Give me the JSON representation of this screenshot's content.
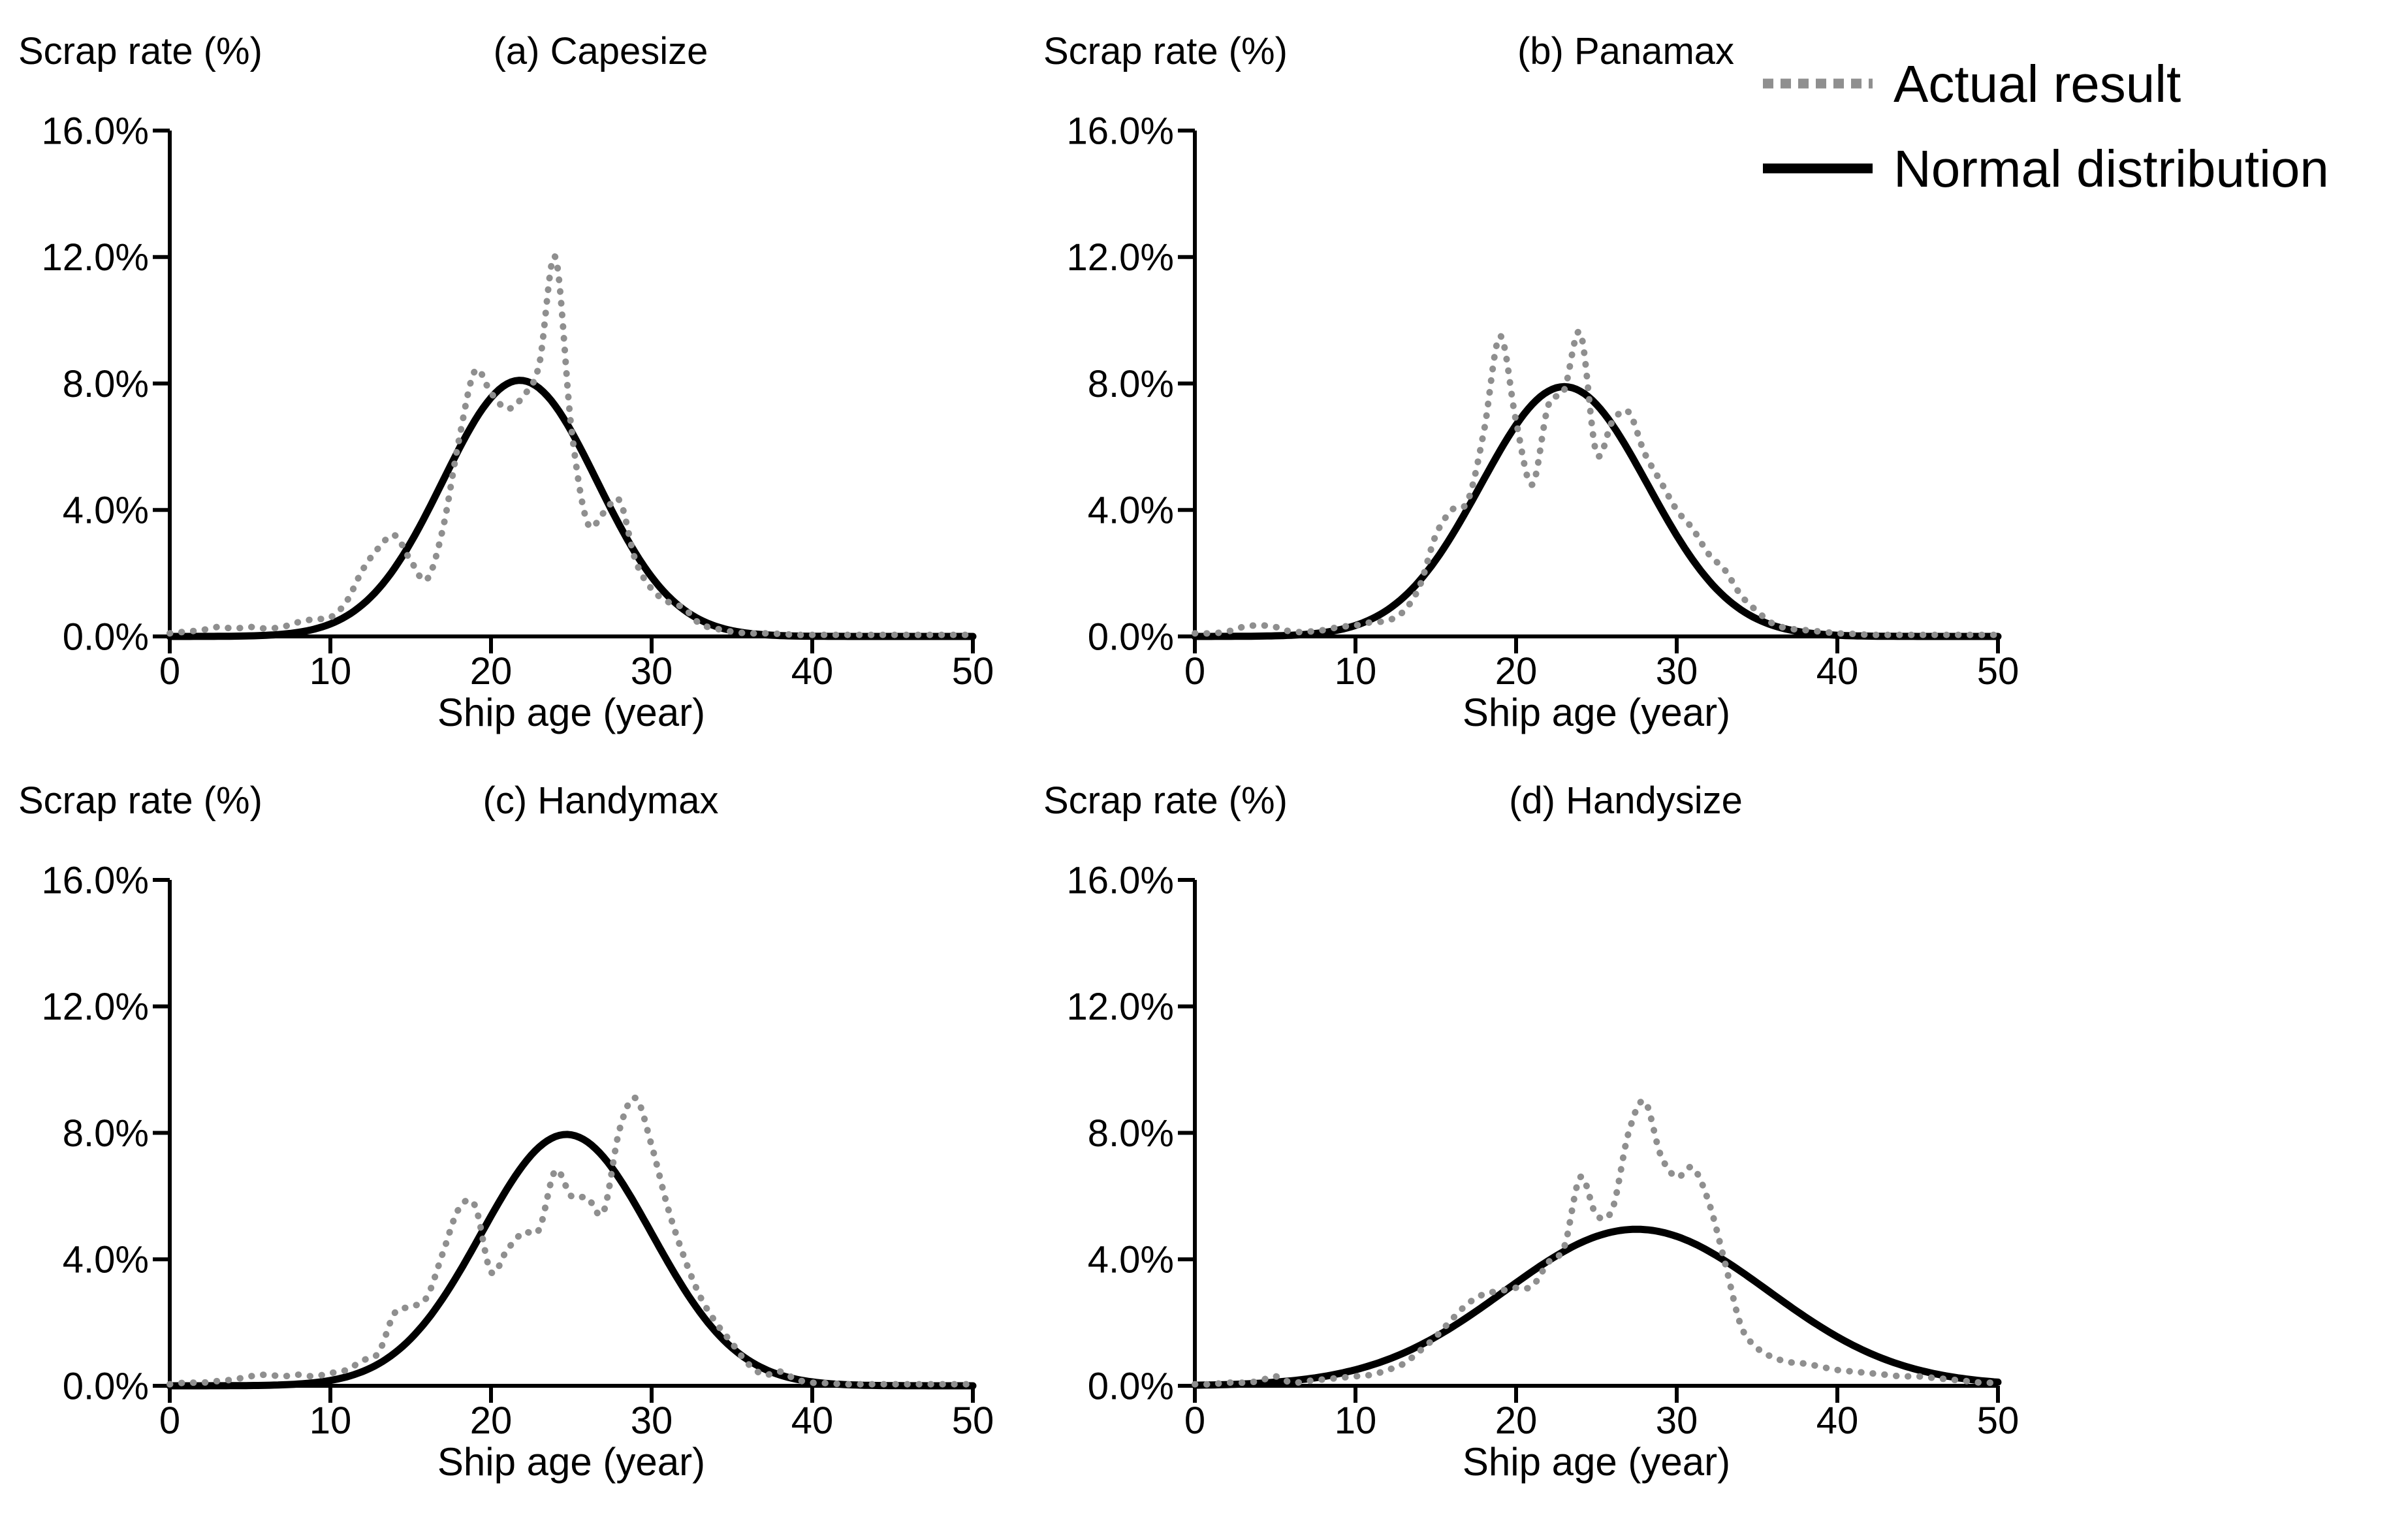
{
  "figure": {
    "background": "#ffffff",
    "text_color": "#000000",
    "actual_color": "#8f8f8f",
    "normal_color": "#000000"
  },
  "legend": {
    "position": "top-right",
    "items": [
      {
        "label": "Actual result",
        "style": "dotted",
        "color": "#8f8f8f"
      },
      {
        "label": "Normal distribution",
        "style": "solid",
        "color": "#000000"
      }
    ]
  },
  "axes": {
    "ylabel": "Scrap rate (%)",
    "xlabel": "Ship age (year)",
    "y_tick_labels": [
      "16.0%",
      "12.0%",
      "8.0%",
      "4.0%",
      "0.0%"
    ],
    "y_tick_values": [
      16,
      12,
      8,
      4,
      0
    ],
    "x_tick_labels": [
      "0",
      "10",
      "20",
      "30",
      "40",
      "50"
    ],
    "x_tick_values": [
      0,
      10,
      20,
      30,
      40,
      50
    ],
    "x_range": [
      0,
      50
    ],
    "y_range_percent": [
      0,
      16
    ],
    "grid": "off"
  },
  "chart_data": [
    {
      "id": "a",
      "type": "line",
      "title": "(a) Capesize",
      "x_years_step": 1,
      "series": [
        {
          "name": "Actual result",
          "values": [
            0.1,
            0.15,
            0.2,
            0.3,
            0.25,
            0.3,
            0.25,
            0.3,
            0.45,
            0.55,
            0.6,
            1.1,
            2.1,
            2.8,
            3.2,
            2.4,
            1.8,
            3.4,
            6.2,
            8.4,
            7.7,
            7.2,
            7.6,
            8.6,
            12.0,
            6.6,
            3.6,
            3.9,
            4.3,
            2.4,
            1.5,
            1.1,
            0.9,
            0.4,
            0.25,
            0.15,
            0.1,
            0.1,
            0.08,
            0.05,
            0.05,
            0.05,
            0.05,
            0.05,
            0.05,
            0.05,
            0.05,
            0.05,
            0.05,
            0.05,
            0.05
          ]
        },
        {
          "name": "Normal distribution",
          "model": {
            "mean": 21.8,
            "sd": 4.8,
            "peak_percent": 8.1
          }
        }
      ]
    },
    {
      "id": "b",
      "type": "line",
      "title": "(b) Panamax",
      "x_years_step": 1,
      "series": [
        {
          "name": "Actual result",
          "values": [
            0.1,
            0.1,
            0.15,
            0.3,
            0.35,
            0.3,
            0.15,
            0.15,
            0.2,
            0.3,
            0.35,
            0.45,
            0.5,
            0.8,
            1.6,
            3.2,
            4.0,
            4.3,
            6.5,
            9.5,
            6.8,
            4.8,
            7.3,
            7.8,
            9.6,
            5.8,
            6.8,
            7.1,
            5.8,
            4.9,
            4.0,
            3.4,
            2.6,
            2.1,
            1.3,
            0.8,
            0.4,
            0.25,
            0.2,
            0.15,
            0.1,
            0.08,
            0.05,
            0.05,
            0.05,
            0.05,
            0.05,
            0.05,
            0.05,
            0.05,
            0.05
          ]
        },
        {
          "name": "Normal distribution",
          "model": {
            "mean": 23.0,
            "sd": 5.2,
            "peak_percent": 7.9
          }
        }
      ]
    },
    {
      "id": "c",
      "type": "line",
      "title": "(c) Handymax",
      "x_years_step": 1,
      "series": [
        {
          "name": "Actual result",
          "values": [
            0.05,
            0.1,
            0.1,
            0.15,
            0.2,
            0.3,
            0.35,
            0.3,
            0.35,
            0.3,
            0.4,
            0.5,
            0.8,
            1.05,
            2.3,
            2.5,
            2.8,
            4.2,
            5.6,
            5.7,
            3.6,
            4.3,
            4.85,
            4.95,
            6.8,
            6.0,
            5.95,
            5.5,
            8.1,
            9.1,
            7.6,
            5.65,
            4.1,
            2.85,
            2.0,
            1.35,
            0.7,
            0.35,
            0.45,
            0.2,
            0.1,
            0.08,
            0.05,
            0.05,
            0.05,
            0.05,
            0.05,
            0.05,
            0.05,
            0.05,
            0.05
          ]
        },
        {
          "name": "Normal distribution",
          "model": {
            "mean": 24.7,
            "sd": 5.3,
            "peak_percent": 7.95
          }
        }
      ]
    },
    {
      "id": "d",
      "type": "line",
      "title": "(d) Handysize",
      "x_years_step": 1,
      "series": [
        {
          "name": "Actual result",
          "values": [
            0.05,
            0.05,
            0.1,
            0.1,
            0.15,
            0.3,
            0.1,
            0.15,
            0.2,
            0.25,
            0.3,
            0.35,
            0.5,
            0.7,
            1.1,
            1.55,
            2.1,
            2.6,
            2.9,
            3.0,
            3.1,
            3.15,
            3.9,
            4.4,
            6.6,
            5.4,
            5.6,
            8.0,
            9.0,
            7.3,
            6.6,
            6.9,
            5.8,
            3.9,
            1.9,
            1.2,
            0.9,
            0.75,
            0.7,
            0.6,
            0.5,
            0.45,
            0.4,
            0.35,
            0.3,
            0.3,
            0.25,
            0.2,
            0.15,
            0.1,
            0.1
          ]
        },
        {
          "name": "Normal distribution",
          "model": {
            "mean": 27.5,
            "sd": 8.2,
            "peak_percent": 4.95
          }
        }
      ]
    }
  ]
}
